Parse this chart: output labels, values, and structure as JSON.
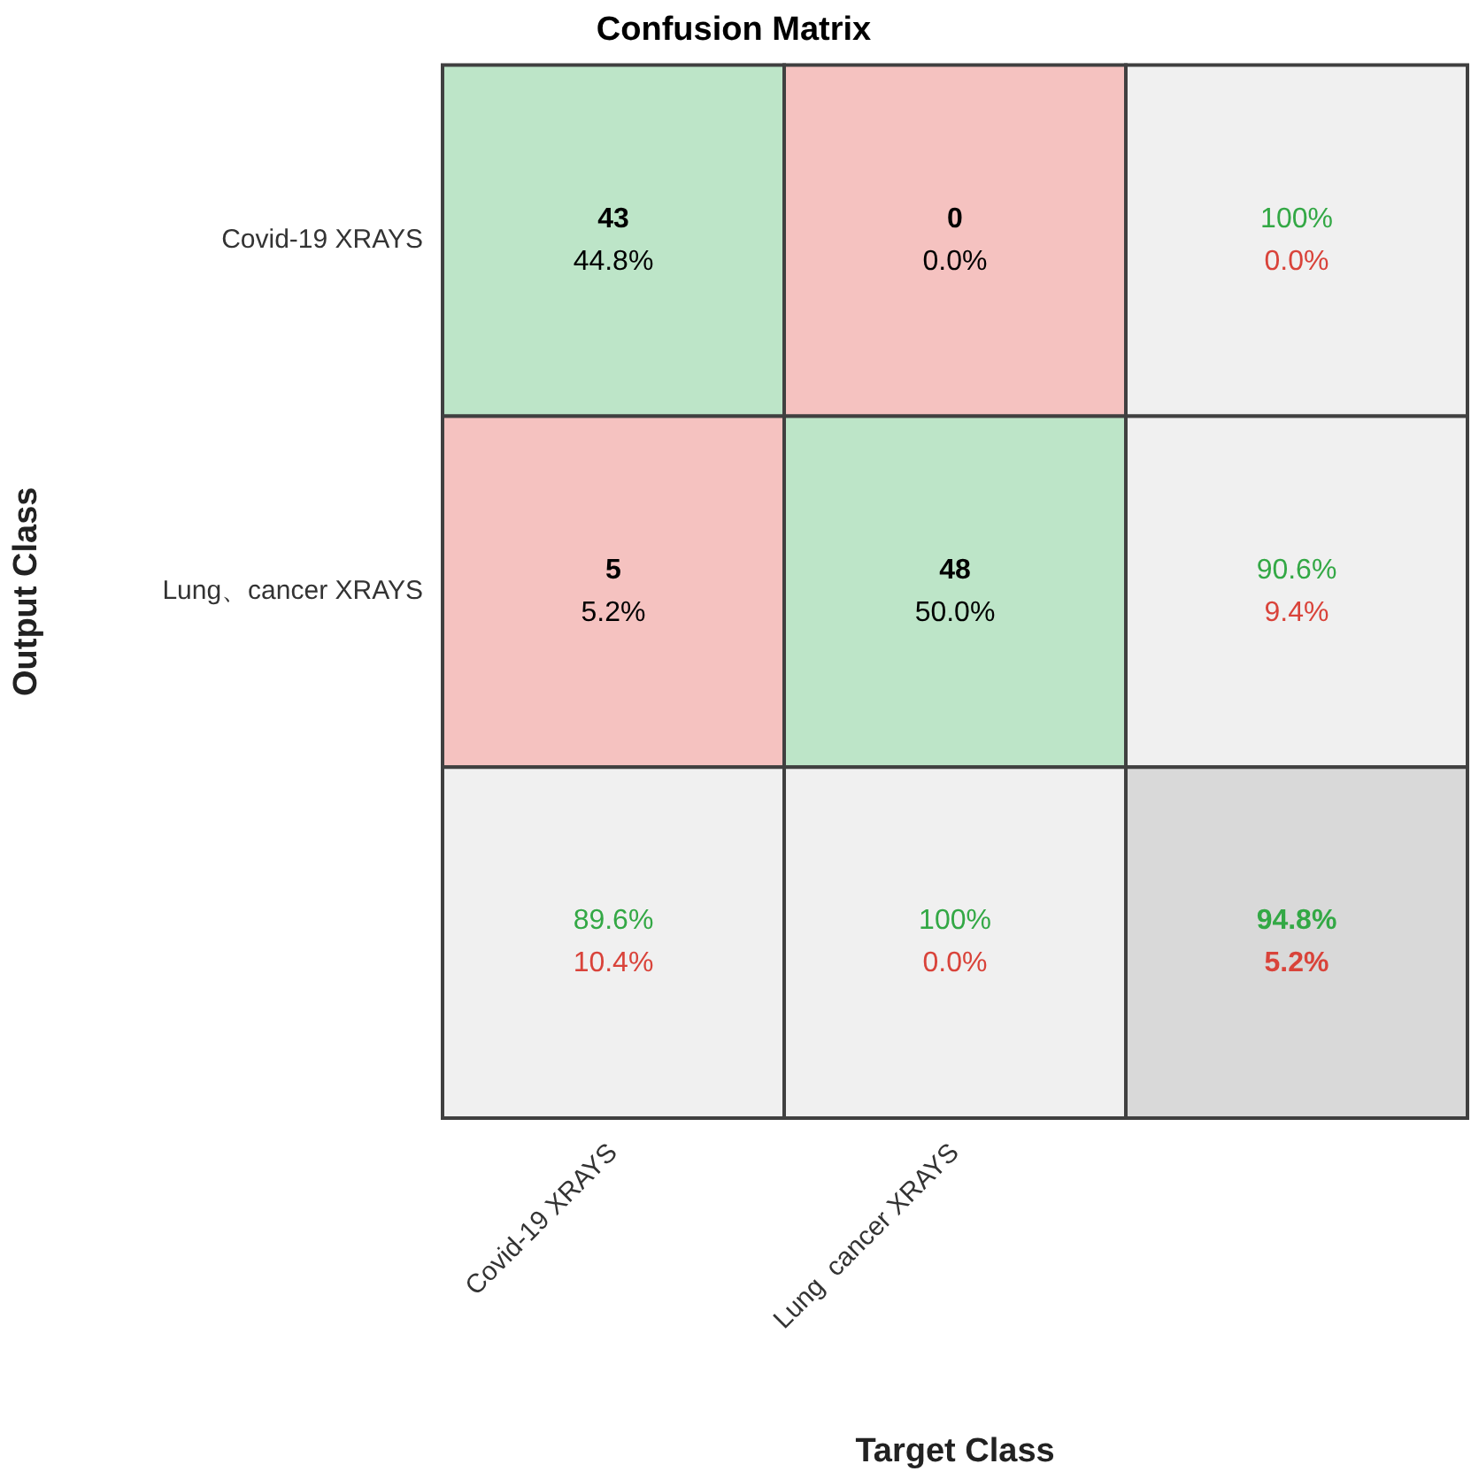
{
  "chart_data": {
    "type": "heatmap",
    "title": "Confusion Matrix",
    "xlabel": "Target Class",
    "ylabel": "Output Class",
    "categories": [
      "Covid-19 XRAYS",
      "Lung  cancer XRAYS",
      null
    ],
    "y_categories": [
      "Covid-19 XRAYS",
      "Lung、cancer XRAYS",
      null
    ],
    "cells": [
      [
        43,
        0,
        100
      ],
      [
        5,
        48,
        90.6
      ],
      [
        89.6,
        100,
        94.8
      ]
    ],
    "cell_labels": [
      [
        "43",
        "0",
        "100%"
      ],
      [
        "5",
        "48",
        "90.6%"
      ],
      [
        "89.6%",
        "100%",
        "94.8%"
      ]
    ],
    "annotations": [
      "44.8%",
      "0.0%",
      "0.0%",
      "5.2%",
      "50.0%",
      "9.4%",
      "10.4%",
      "0.0%",
      "5.2%"
    ],
    "colors": [
      [
        "#bde5c8",
        "#f5c2c0",
        "#f0f0f0"
      ],
      [
        "#f5c2c0",
        "#bde5c8",
        "#f0f0f0"
      ],
      [
        "#f0f0f0",
        "#f0f0f0",
        "#d9d9d9"
      ]
    ]
  }
}
